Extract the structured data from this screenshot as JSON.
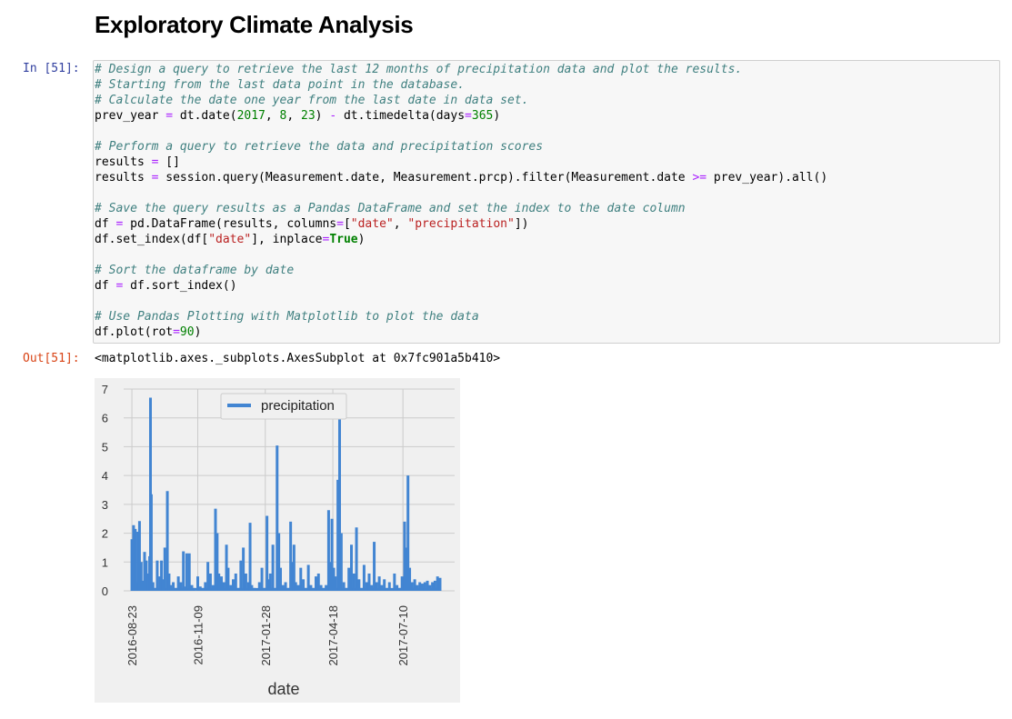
{
  "page": {
    "title": "Exploratory Climate Analysis"
  },
  "cell": {
    "in_prompt": "In [51]:",
    "out_prompt": "Out[51]:",
    "output_text": "<matplotlib.axes._subplots.AxesSubplot at 0x7fc901a5b410>",
    "code_lines": [
      "# Design a query to retrieve the last 12 months of precipitation data and plot the results.",
      "# Starting from the last data point in the database.",
      "# Calculate the date one year from the last date in data set.",
      "prev_year = dt.date(2017, 8, 23) - dt.timedelta(days=365)",
      "",
      "# Perform a query to retrieve the data and precipitation scores",
      "results = []",
      "results = session.query(Measurement.date, Measurement.prcp).filter(Measurement.date >= prev_year).all()",
      "",
      "# Save the query results as a Pandas DataFrame and set the index to the date column",
      "df = pd.DataFrame(results, columns=[\"date\", \"precipitation\"])",
      "df.set_index(df[\"date\"], inplace=True)",
      "",
      "# Sort the dataframe by date",
      "df = df.sort_index()",
      "",
      "# Use Pandas Plotting with Matplotlib to plot the data",
      "df.plot(rot=90)"
    ]
  },
  "colors": {
    "series": "#4285d2",
    "chart_bg": "#f0f0f0",
    "grid": "#cbcbcb"
  },
  "chart_data": {
    "type": "bar",
    "xlabel": "date",
    "ylabel": "",
    "ylim": [
      0,
      7
    ],
    "yticks": [
      0,
      1,
      2,
      3,
      4,
      5,
      6,
      7
    ],
    "xticks": [
      "2016-08-23",
      "2016-11-09",
      "2017-01-28",
      "2017-04-18",
      "2017-07-10"
    ],
    "xrange": [
      "2016-08-23",
      "2017-08-23"
    ],
    "legend": "top-center",
    "grid": true,
    "series": [
      {
        "name": "precipitation",
        "points": [
          [
            "2016-08-23",
            1.79
          ],
          [
            "2016-08-25",
            2.28
          ],
          [
            "2016-08-27",
            2.15
          ],
          [
            "2016-08-28",
            0.3
          ],
          [
            "2016-08-30",
            2.05
          ],
          [
            "2016-09-01",
            2.42
          ],
          [
            "2016-09-03",
            1.0
          ],
          [
            "2016-09-05",
            0.35
          ],
          [
            "2016-09-07",
            1.35
          ],
          [
            "2016-09-09",
            1.05
          ],
          [
            "2016-09-11",
            0.6
          ],
          [
            "2016-09-13",
            1.2
          ],
          [
            "2016-09-14",
            6.7
          ],
          [
            "2016-09-15",
            3.35
          ],
          [
            "2016-09-17",
            0.3
          ],
          [
            "2016-09-19",
            0.1
          ],
          [
            "2016-09-22",
            1.05
          ],
          [
            "2016-09-25",
            0.5
          ],
          [
            "2016-09-27",
            1.05
          ],
          [
            "2016-09-29",
            0.4
          ],
          [
            "2016-10-01",
            1.5
          ],
          [
            "2016-10-04",
            3.46
          ],
          [
            "2016-10-06",
            0.6
          ],
          [
            "2016-10-08",
            0.2
          ],
          [
            "2016-10-11",
            0.3
          ],
          [
            "2016-10-14",
            0.1
          ],
          [
            "2016-10-17",
            0.5
          ],
          [
            "2016-10-20",
            0.3
          ],
          [
            "2016-10-23",
            1.37
          ],
          [
            "2016-10-25",
            0.15
          ],
          [
            "2016-10-27",
            1.3
          ],
          [
            "2016-10-30",
            1.3
          ],
          [
            "2016-11-02",
            0.2
          ],
          [
            "2016-11-05",
            0.1
          ],
          [
            "2016-11-09",
            0.5
          ],
          [
            "2016-11-12",
            0.15
          ],
          [
            "2016-11-15",
            0.1
          ],
          [
            "2016-11-18",
            0.3
          ],
          [
            "2016-11-21",
            1.0
          ],
          [
            "2016-11-24",
            0.6
          ],
          [
            "2016-11-27",
            0.2
          ],
          [
            "2016-11-30",
            2.85
          ],
          [
            "2016-12-02",
            2.0
          ],
          [
            "2016-12-04",
            0.6
          ],
          [
            "2016-12-07",
            0.5
          ],
          [
            "2016-12-10",
            0.3
          ],
          [
            "2016-12-13",
            1.6
          ],
          [
            "2016-12-15",
            0.8
          ],
          [
            "2016-12-18",
            0.2
          ],
          [
            "2016-12-21",
            0.4
          ],
          [
            "2016-12-24",
            0.6
          ],
          [
            "2016-12-27",
            0.1
          ],
          [
            "2016-12-30",
            1.05
          ],
          [
            "2017-01-02",
            1.5
          ],
          [
            "2017-01-05",
            0.6
          ],
          [
            "2017-01-08",
            0.3
          ],
          [
            "2017-01-10",
            2.36
          ],
          [
            "2017-01-12",
            0.2
          ],
          [
            "2017-01-15",
            0.1
          ],
          [
            "2017-01-18",
            0.05
          ],
          [
            "2017-01-21",
            0.3
          ],
          [
            "2017-01-24",
            0.8
          ],
          [
            "2017-01-27",
            0.1
          ],
          [
            "2017-01-30",
            2.6
          ],
          [
            "2017-02-01",
            0.4
          ],
          [
            "2017-02-03",
            0.6
          ],
          [
            "2017-02-06",
            1.6
          ],
          [
            "2017-02-09",
            0.1
          ],
          [
            "2017-02-11",
            5.04
          ],
          [
            "2017-02-13",
            2.0
          ],
          [
            "2017-02-15",
            0.8
          ],
          [
            "2017-02-18",
            0.2
          ],
          [
            "2017-02-21",
            0.3
          ],
          [
            "2017-02-24",
            0.1
          ],
          [
            "2017-02-27",
            2.4
          ],
          [
            "2017-03-01",
            1.0
          ],
          [
            "2017-03-03",
            1.6
          ],
          [
            "2017-03-05",
            0.3
          ],
          [
            "2017-03-08",
            0.2
          ],
          [
            "2017-03-11",
            0.8
          ],
          [
            "2017-03-14",
            0.4
          ],
          [
            "2017-03-17",
            0.1
          ],
          [
            "2017-03-20",
            0.9
          ],
          [
            "2017-03-23",
            0.2
          ],
          [
            "2017-03-26",
            0.1
          ],
          [
            "2017-03-29",
            0.5
          ],
          [
            "2017-04-01",
            0.6
          ],
          [
            "2017-04-04",
            0.2
          ],
          [
            "2017-04-07",
            0.1
          ],
          [
            "2017-04-10",
            0.2
          ],
          [
            "2017-04-13",
            2.8
          ],
          [
            "2017-04-15",
            1.0
          ],
          [
            "2017-04-17",
            2.5
          ],
          [
            "2017-04-19",
            0.8
          ],
          [
            "2017-04-21",
            0.5
          ],
          [
            "2017-04-24",
            3.85
          ],
          [
            "2017-04-26",
            6.25
          ],
          [
            "2017-04-28",
            2.0
          ],
          [
            "2017-05-01",
            0.3
          ],
          [
            "2017-05-04",
            0.1
          ],
          [
            "2017-05-07",
            0.8
          ],
          [
            "2017-05-10",
            1.6
          ],
          [
            "2017-05-13",
            0.6
          ],
          [
            "2017-05-16",
            2.2
          ],
          [
            "2017-05-19",
            0.4
          ],
          [
            "2017-05-22",
            0.1
          ],
          [
            "2017-05-25",
            0.9
          ],
          [
            "2017-05-28",
            0.3
          ],
          [
            "2017-05-31",
            0.6
          ],
          [
            "2017-06-03",
            0.2
          ],
          [
            "2017-06-06",
            1.7
          ],
          [
            "2017-06-09",
            0.3
          ],
          [
            "2017-06-12",
            0.5
          ],
          [
            "2017-06-15",
            0.2
          ],
          [
            "2017-06-18",
            0.4
          ],
          [
            "2017-06-21",
            0.1
          ],
          [
            "2017-06-24",
            0.3
          ],
          [
            "2017-06-27",
            0.05
          ],
          [
            "2017-06-30",
            0.6
          ],
          [
            "2017-07-03",
            0.2
          ],
          [
            "2017-07-06",
            0.1
          ],
          [
            "2017-07-09",
            0.5
          ],
          [
            "2017-07-12",
            2.4
          ],
          [
            "2017-07-14",
            1.5
          ],
          [
            "2017-07-16",
            4.0
          ],
          [
            "2017-07-18",
            0.8
          ],
          [
            "2017-07-21",
            0.3
          ],
          [
            "2017-07-24",
            0.4
          ],
          [
            "2017-07-27",
            0.2
          ],
          [
            "2017-07-30",
            0.3
          ],
          [
            "2017-08-02",
            0.25
          ],
          [
            "2017-08-05",
            0.3
          ],
          [
            "2017-08-08",
            0.35
          ],
          [
            "2017-08-11",
            0.2
          ],
          [
            "2017-08-14",
            0.3
          ],
          [
            "2017-08-17",
            0.35
          ],
          [
            "2017-08-20",
            0.5
          ],
          [
            "2017-08-23",
            0.45
          ]
        ]
      }
    ]
  }
}
